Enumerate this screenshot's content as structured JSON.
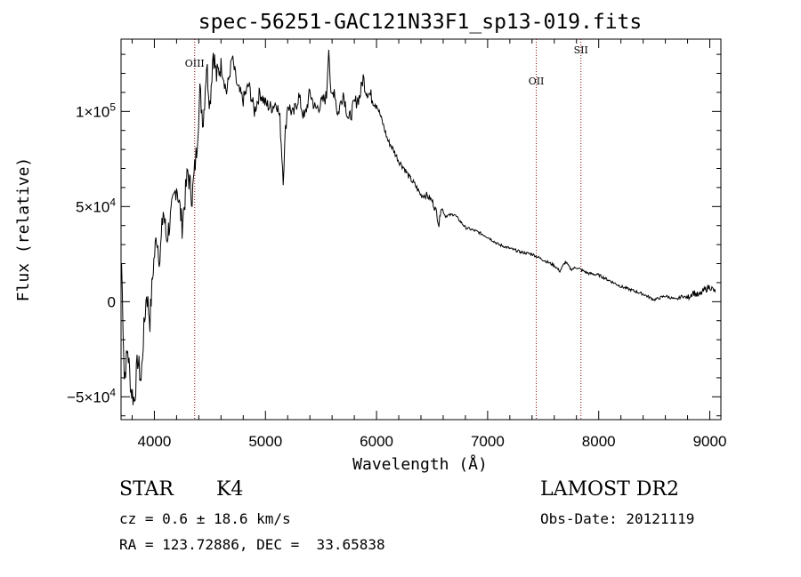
{
  "chart_data": {
    "type": "line",
    "title": "spec-56251-GAC121N33F1_sp13-019.fits",
    "xlabel": "Wavelength (Å)",
    "ylabel": "Flux (relative)",
    "xlim": [
      3700,
      9100
    ],
    "ylim": [
      -62000,
      138000
    ],
    "x_ticks": [
      4000,
      5000,
      6000,
      7000,
      8000,
      9000
    ],
    "x_tick_labels": [
      "4000",
      "5000",
      "6000",
      "7000",
      "8000",
      "9000"
    ],
    "y_ticks": [
      -50000,
      0,
      50000,
      100000
    ],
    "y_tick_labels": [
      {
        "mant": "−5×10",
        "exp": "4"
      },
      {
        "mant": "0",
        "exp": ""
      },
      {
        "mant": "5×10",
        "exp": "4"
      },
      {
        "mant": "1×10",
        "exp": "5"
      }
    ],
    "series": [
      {
        "x": [
          3705,
          3730,
          3760,
          3790,
          3820,
          3850,
          3880,
          3900,
          3930,
          3960,
          3990,
          4020,
          4050,
          4080,
          4110,
          4150,
          4200,
          4250,
          4300,
          4340,
          4380,
          4410,
          4440,
          4470,
          4500,
          4530,
          4560,
          4600,
          4650,
          4700,
          4750,
          4800,
          4850,
          4900,
          4950,
          5000,
          5050,
          5100,
          5130,
          5160,
          5180,
          5200,
          5250,
          5300,
          5350,
          5400,
          5450,
          5500,
          5550,
          5570,
          5590,
          5620,
          5650,
          5700,
          5750,
          5800,
          5850,
          5880,
          5900,
          5950,
          6000,
          6050,
          6100,
          6150,
          6200,
          6250,
          6300,
          6350,
          6400,
          6450,
          6500,
          6540,
          6562,
          6580,
          6620,
          6700,
          6800,
          6850,
          6900,
          7000,
          7100,
          7200,
          7300,
          7400,
          7500,
          7600,
          7650,
          7700,
          7750,
          7800,
          7900,
          8000,
          8100,
          8200,
          8300,
          8400,
          8500,
          8550,
          8600,
          8650,
          8700,
          8750,
          8800,
          8850,
          8900,
          8950,
          9000,
          9050
        ],
        "y": [
          20000,
          -40000,
          -25000,
          -46000,
          -52000,
          -30000,
          -42000,
          -20000,
          5000,
          -10000,
          18000,
          35000,
          22000,
          48000,
          33000,
          45000,
          62000,
          40000,
          68000,
          55000,
          80000,
          110000,
          95000,
          125000,
          104000,
          132000,
          118000,
          125000,
          110000,
          128000,
          112000,
          106000,
          114000,
          100000,
          110000,
          104000,
          102000,
          105000,
          96000,
          65000,
          90000,
          104000,
          98000,
          108000,
          96000,
          110000,
          101000,
          104000,
          108000,
          136000,
          106000,
          112000,
          98000,
          110000,
          95000,
          104000,
          108000,
          118000,
          112000,
          108000,
          104000,
          95000,
          85000,
          80000,
          74000,
          70000,
          65000,
          61000,
          56000,
          56000,
          53000,
          47000,
          40000,
          50000,
          45000,
          46000,
          39000,
          38000,
          37000,
          34000,
          30000,
          28000,
          26000,
          25000,
          22000,
          19000,
          16000,
          21000,
          17000,
          18000,
          15000,
          14000,
          11000,
          8000,
          6000,
          4000,
          1000,
          2000,
          3000,
          2000,
          1000,
          3000,
          2000,
          5000,
          3000,
          6000,
          8000,
          5000
        ]
      }
    ],
    "lines": [
      {
        "x": 4363,
        "label": "OIII"
      },
      {
        "x": 7438,
        "label": "OII"
      },
      {
        "x": 7840,
        "label": "SII"
      }
    ],
    "line_color": "#8b0000",
    "grid": false
  },
  "info": {
    "object_class": "STAR",
    "subclass": "K4",
    "cz": "cz = 0.6 ± 18.6 km/s",
    "coords": "RA = 123.72886, DEC =  33.65838",
    "survey": "LAMOST DR2",
    "obs_date": "Obs-Date: 20121119"
  }
}
